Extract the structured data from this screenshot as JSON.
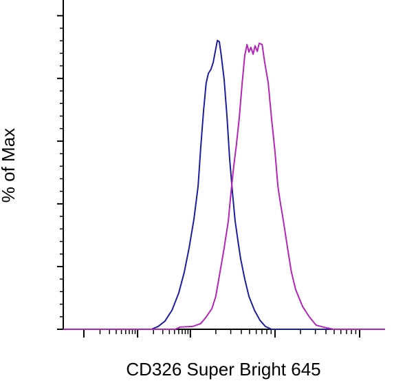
{
  "chart_data": {
    "type": "line",
    "xlabel": "CD326 Super Bright 645",
    "ylabel": "% of Max",
    "xlim": [
      0,
      100
    ],
    "ylim": [
      0,
      105
    ],
    "xticks": [
      6.4,
      23.1,
      39.5,
      65.8,
      92.1
    ],
    "yticks": [
      0,
      20,
      40,
      60,
      80,
      100
    ],
    "series": [
      {
        "color": "#1c1ca0",
        "x": [
          0,
          27.4,
          29.5,
          31.6,
          33.8,
          35.9,
          37.6,
          39.1,
          40.6,
          41.9,
          42.7,
          43.6,
          44.4,
          45.1,
          45.9,
          46.6,
          47.2,
          47.9,
          48.5,
          49.1,
          50.0,
          50.9,
          51.7,
          52.6,
          53.4,
          54.3,
          55.1,
          56.4,
          57.7,
          59.4,
          61.1,
          62.8,
          64.7,
          100
        ],
        "values": [
          0,
          0,
          0.9,
          2.6,
          6.1,
          11.6,
          18.2,
          25.9,
          35.1,
          45.6,
          57.7,
          69.7,
          78.5,
          81.6,
          82.9,
          85.1,
          88.4,
          92.1,
          91.7,
          87.3,
          79.6,
          67.5,
          54.4,
          43.4,
          34.6,
          28.1,
          22.6,
          16.0,
          10.5,
          6.1,
          2.9,
          0.9,
          0,
          0
        ]
      },
      {
        "color": "#b424b8",
        "x": [
          0,
          34.8,
          36.3,
          40.2,
          42.7,
          44.4,
          46.2,
          47.4,
          48.7,
          50.0,
          51.3,
          52.1,
          53.0,
          53.8,
          54.7,
          55.6,
          56.4,
          57.1,
          57.7,
          58.3,
          59.0,
          59.6,
          60.3,
          60.9,
          61.8,
          62.6,
          63.7,
          64.7,
          65.8,
          66.7,
          67.5,
          68.4,
          69.7,
          70.9,
          72.2,
          74.4,
          76.5,
          78.6,
          80.8,
          84.0,
          100
        ],
        "values": [
          0,
          0,
          0.7,
          0.9,
          1.8,
          3.9,
          6.6,
          10.5,
          18.2,
          25.9,
          34.6,
          43.4,
          52.2,
          58.8,
          67.5,
          78.5,
          87.3,
          90.8,
          88.4,
          89.9,
          87.7,
          90.4,
          88.6,
          91.2,
          90.8,
          85.1,
          78.5,
          67.5,
          56.6,
          45.6,
          40.1,
          34.6,
          25.9,
          18.2,
          12.7,
          7.2,
          3.9,
          1.3,
          0.7,
          0,
          0
        ]
      }
    ]
  }
}
